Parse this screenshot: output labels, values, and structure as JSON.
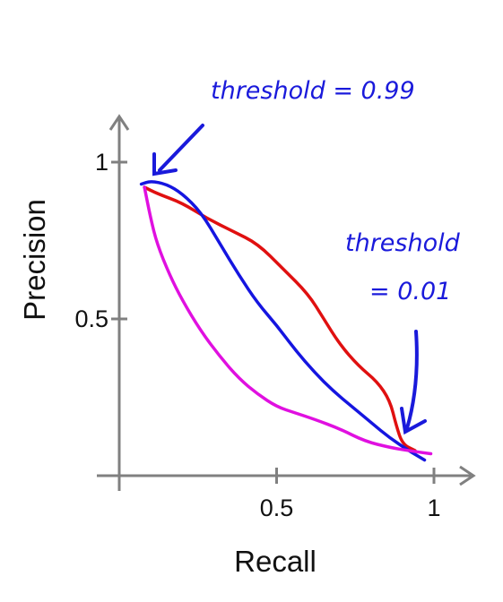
{
  "chart_data": {
    "type": "line",
    "title": "",
    "xlabel": "Recall",
    "ylabel": "Precision",
    "xlim": [
      0,
      1.1
    ],
    "ylim": [
      0,
      1.1
    ],
    "x_ticks": [
      {
        "value": 0.5,
        "label": "0.5"
      },
      {
        "value": 1,
        "label": "1"
      }
    ],
    "y_ticks": [
      {
        "value": 0.5,
        "label": "0.5"
      },
      {
        "value": 1,
        "label": "1"
      }
    ],
    "grid": false,
    "series": [
      {
        "color": "#e01010",
        "points": [
          [
            0.08,
            0.92
          ],
          [
            0.12,
            0.9
          ],
          [
            0.2,
            0.87
          ],
          [
            0.28,
            0.82
          ],
          [
            0.36,
            0.78
          ],
          [
            0.44,
            0.74
          ],
          [
            0.52,
            0.66
          ],
          [
            0.6,
            0.58
          ],
          [
            0.65,
            0.5
          ],
          [
            0.7,
            0.42
          ],
          [
            0.76,
            0.35
          ],
          [
            0.82,
            0.3
          ],
          [
            0.86,
            0.24
          ],
          [
            0.88,
            0.16
          ],
          [
            0.9,
            0.1
          ],
          [
            0.94,
            0.08
          ]
        ]
      },
      {
        "color": "#1515e0",
        "points": [
          [
            0.07,
            0.93
          ],
          [
            0.1,
            0.94
          ],
          [
            0.15,
            0.93
          ],
          [
            0.2,
            0.9
          ],
          [
            0.26,
            0.84
          ],
          [
            0.32,
            0.74
          ],
          [
            0.38,
            0.64
          ],
          [
            0.44,
            0.55
          ],
          [
            0.5,
            0.48
          ],
          [
            0.56,
            0.4
          ],
          [
            0.62,
            0.33
          ],
          [
            0.68,
            0.27
          ],
          [
            0.74,
            0.22
          ],
          [
            0.8,
            0.17
          ],
          [
            0.86,
            0.12
          ],
          [
            0.92,
            0.08
          ],
          [
            0.97,
            0.05
          ]
        ]
      },
      {
        "color": "#e010e0",
        "points": [
          [
            0.08,
            0.92
          ],
          [
            0.1,
            0.82
          ],
          [
            0.12,
            0.74
          ],
          [
            0.16,
            0.64
          ],
          [
            0.2,
            0.56
          ],
          [
            0.26,
            0.46
          ],
          [
            0.32,
            0.38
          ],
          [
            0.38,
            0.31
          ],
          [
            0.44,
            0.26
          ],
          [
            0.5,
            0.22
          ],
          [
            0.56,
            0.2
          ],
          [
            0.62,
            0.18
          ],
          [
            0.7,
            0.15
          ],
          [
            0.78,
            0.11
          ],
          [
            0.86,
            0.09
          ],
          [
            0.92,
            0.08
          ],
          [
            0.99,
            0.07
          ]
        ]
      }
    ],
    "annotations": [
      {
        "text": "threshold = 0.99",
        "points_to": [
          0.12,
          0.96
        ]
      },
      {
        "text": "threshold",
        "points_to": [
          0.92,
          0.14
        ]
      },
      {
        "text": "= 0.01",
        "points_to": [
          0.92,
          0.14
        ]
      }
    ]
  }
}
